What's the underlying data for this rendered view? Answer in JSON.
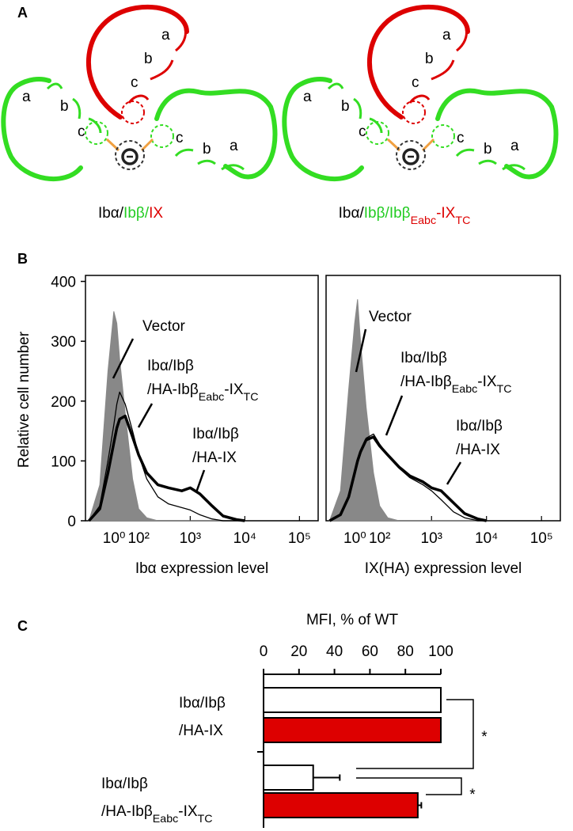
{
  "panel_a": {
    "label": "A",
    "diagrams": [
      {
        "caption": [
          {
            "text": "Ibα/",
            "color": "#000000"
          },
          {
            "text": "Ibβ/",
            "color": "#22cc22"
          },
          {
            "text": "IX",
            "color": "#dd0000"
          }
        ],
        "arms": [
          {
            "color": "#dd0000",
            "labels": [
              "a",
              "b",
              "c"
            ]
          },
          {
            "color": "#33dd22",
            "labels": [
              "a",
              "b",
              "c"
            ]
          },
          {
            "color": "#33dd22",
            "labels": [
              "c",
              "b",
              "a"
            ]
          }
        ]
      },
      {
        "caption": [
          {
            "text": "Ibα/",
            "color": "#000000"
          },
          {
            "text": "Ibβ/",
            "color": "#22cc22"
          },
          {
            "text": "Ibβ",
            "color": "#22cc22"
          },
          {
            "text": "Eabc",
            "color": "#dd0000",
            "sub": true
          },
          {
            "text": "-IX",
            "color": "#dd0000"
          },
          {
            "text": "TC",
            "color": "#dd0000",
            "sub": true
          }
        ],
        "arms": [
          {
            "color": "#dd0000",
            "labels": [
              "a",
              "b",
              "c"
            ]
          },
          {
            "color": "#33dd22",
            "labels": [
              "a",
              "b",
              "c"
            ]
          },
          {
            "color": "#33dd22",
            "labels": [
              "c",
              "b",
              "a"
            ]
          }
        ]
      }
    ]
  },
  "panel_b": {
    "label": "B",
    "y_label": "Relative cell number",
    "ylim": [
      0,
      410
    ],
    "yticks": [
      0,
      100,
      200,
      300,
      400
    ],
    "xscale": "asinh",
    "asinh_cofactor": 80,
    "xlim": [
      -120,
      220000
    ],
    "xticks": [
      {
        "value": 1,
        "label": "10⁰"
      },
      {
        "value": 100,
        "label": "10²"
      },
      {
        "value": 1000,
        "label": "10³"
      },
      {
        "value": 10000,
        "label": "10⁴"
      },
      {
        "value": 100000,
        "label": "10⁵"
      }
    ],
    "x": [
      -100,
      -50,
      -20,
      0,
      10,
      20,
      40,
      70,
      100,
      150,
      250,
      400,
      700,
      1000,
      1500,
      2500,
      4000,
      7000,
      10000
    ],
    "plots": [
      {
        "x_label": "Ibα expression level",
        "series": [
          {
            "style": "filled",
            "color": "#888888",
            "values": [
              0,
              60,
              250,
              350,
              330,
              270,
              180,
              70,
              20,
              5,
              0,
              0,
              0,
              0,
              0,
              0,
              0,
              0,
              0
            ]
          },
          {
            "style": "thin",
            "color": "#000000",
            "values": [
              0,
              25,
              100,
              160,
              195,
              215,
              195,
              150,
              110,
              70,
              40,
              28,
              22,
              18,
              10,
              3,
              0,
              0,
              0
            ]
          },
          {
            "style": "thick",
            "color": "#000000",
            "values": [
              0,
              20,
              80,
              130,
              155,
              170,
              175,
              140,
              110,
              80,
              60,
              55,
              50,
              55,
              45,
              25,
              8,
              2,
              0
            ]
          }
        ],
        "annotations": [
          {
            "lines": [
              "Vector"
            ]
          },
          {
            "lines": [
              "Ibα/Ibβ",
              [
                {
                  "text": "/HA-Ibβ"
                },
                {
                  "text": "Eabc",
                  "sub": true
                },
                {
                  "text": "-IX"
                },
                {
                  "text": "TC",
                  "sub": true
                }
              ]
            ]
          },
          {
            "lines": [
              "Ibα/Ibβ",
              "/HA-IX"
            ]
          }
        ]
      },
      {
        "x_label": "IX(HA) expression level",
        "series": [
          {
            "style": "filled",
            "color": "#888888",
            "values": [
              0,
              50,
              220,
              330,
              370,
              300,
              190,
              80,
              25,
              5,
              0,
              0,
              0,
              0,
              0,
              0,
              0,
              0,
              0
            ]
          },
          {
            "style": "thin",
            "color": "#000000",
            "values": [
              0,
              10,
              40,
              75,
              100,
              118,
              138,
              145,
              128,
              110,
              88,
              72,
              60,
              50,
              35,
              15,
              5,
              0,
              0
            ]
          },
          {
            "style": "thick",
            "color": "#000000",
            "values": [
              0,
              10,
              40,
              80,
              100,
              115,
              135,
              140,
              125,
              110,
              90,
              75,
              65,
              55,
              50,
              30,
              12,
              3,
              0
            ]
          }
        ],
        "annotations": [
          {
            "lines": [
              "Vector"
            ]
          },
          {
            "lines": [
              "Ibα/Ibβ",
              [
                {
                  "text": "/HA-Ibβ"
                },
                {
                  "text": "Eabc",
                  "sub": true
                },
                {
                  "text": "-IX"
                },
                {
                  "text": "TC",
                  "sub": true
                }
              ]
            ]
          },
          {
            "lines": [
              "Ibα/Ibβ",
              "/HA-IX"
            ]
          }
        ]
      }
    ]
  },
  "panel_c": {
    "label": "C",
    "type": "bar",
    "orientation": "horizontal",
    "x_label": "MFI, % of WT",
    "xlim": [
      0,
      100
    ],
    "xticks": [
      0,
      20,
      40,
      60,
      80,
      100
    ],
    "categories": [
      [
        "Ibα/Ibβ",
        "/HA-IX"
      ],
      [
        "Ibα/Ibβ",
        [
          {
            "text": "/HA-Ibβ"
          },
          {
            "text": "Eabc",
            "sub": true
          },
          {
            "text": "-IX"
          },
          {
            "text": "TC",
            "sub": true
          }
        ]
      ]
    ],
    "series": [
      {
        "color": "#ffffff",
        "values": [
          100,
          28
        ],
        "errors": [
          0,
          15
        ]
      },
      {
        "color": "#dd0000",
        "values": [
          100,
          87
        ],
        "errors": [
          0,
          2
        ]
      }
    ],
    "significance": [
      "*",
      "*"
    ]
  }
}
